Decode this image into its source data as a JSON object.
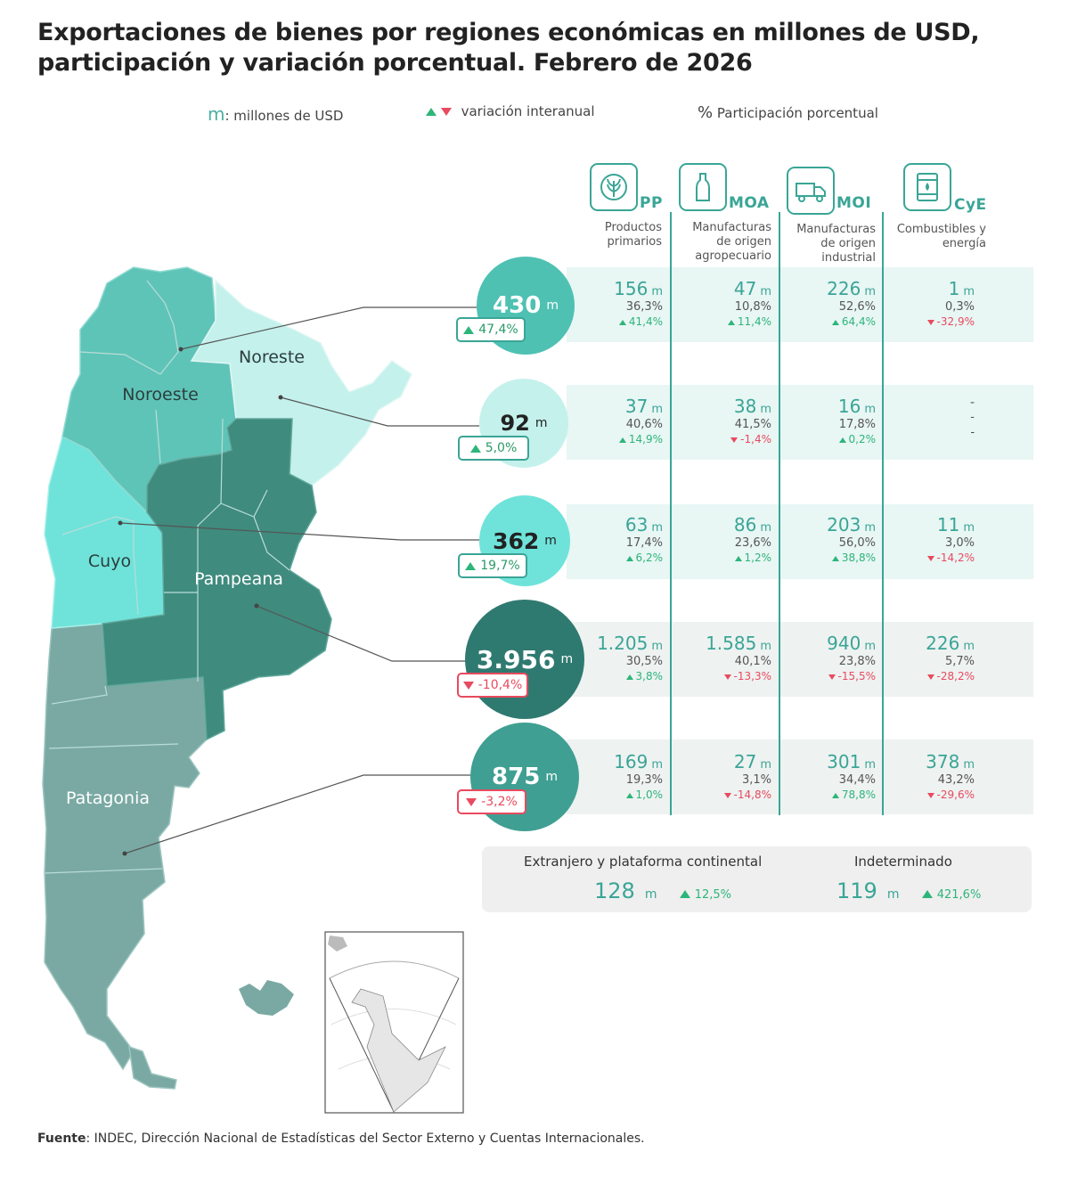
{
  "title": "Exportaciones de bienes por regiones económicas en millones de USD, participación y variación porcentual. Febrero de 2026",
  "legend": {
    "unit_symbol": "m",
    "unit_label": ": millones de USD",
    "variation_label": "variación interanual",
    "share_symbol": "%",
    "share_label": "Participación porcentual"
  },
  "colors": {
    "noroeste": "#5fc4b8",
    "noreste": "#c4f1ec",
    "cuyo": "#6fe3da",
    "pampeana": "#3f8b7e",
    "patagonia": "#7aa9a3",
    "accent": "#3aa596",
    "up": "#2db57a",
    "down": "#e84a5f"
  },
  "columns": [
    {
      "code": "PP",
      "desc_line1": "Productos",
      "desc_line2": "primarios",
      "desc_line3": "",
      "icon": "plant-icon"
    },
    {
      "code": "MOA",
      "desc_line1": "Manufacturas",
      "desc_line2": "de origen",
      "desc_line3": "agropecuario",
      "icon": "bottle-icon"
    },
    {
      "code": "MOI",
      "desc_line1": "Manufacturas",
      "desc_line2": "de origen",
      "desc_line3": "industrial",
      "icon": "truck-icon"
    },
    {
      "code": "CyE",
      "desc_line1": "Combustibles y",
      "desc_line2": "energía",
      "desc_line3": "",
      "icon": "fuel-barrel-icon"
    }
  ],
  "map_labels": {
    "noroeste": "Noroeste",
    "noreste": "Noreste",
    "cuyo": "Cuyo",
    "pampeana": "Pampeana",
    "patagonia": "Patagonia"
  },
  "regions": [
    {
      "name": "Noroeste",
      "total": "430",
      "unit": "m",
      "variation": "47,4%",
      "direction": "up",
      "cells": [
        {
          "value": "156",
          "share": "36,3%",
          "variation": "41,4%",
          "direction": "up"
        },
        {
          "value": "47",
          "share": "10,8%",
          "variation": "11,4%",
          "direction": "up"
        },
        {
          "value": "226",
          "share": "52,6%",
          "variation": "64,4%",
          "direction": "up"
        },
        {
          "value": "1",
          "share": "0,3%",
          "variation": "-32,9%",
          "direction": "down"
        }
      ]
    },
    {
      "name": "Noreste",
      "total": "92",
      "unit": "m",
      "variation": "5,0%",
      "direction": "up",
      "cells": [
        {
          "value": "37",
          "share": "40,6%",
          "variation": "14,9%",
          "direction": "up"
        },
        {
          "value": "38",
          "share": "41,5%",
          "variation": "-1,4%",
          "direction": "down"
        },
        {
          "value": "16",
          "share": "17,8%",
          "variation": "0,2%",
          "direction": "up"
        },
        {
          "value": "-",
          "share": "-",
          "variation": "-",
          "direction": "none"
        }
      ]
    },
    {
      "name": "Cuyo",
      "total": "362",
      "unit": "m",
      "variation": "19,7%",
      "direction": "up",
      "cells": [
        {
          "value": "63",
          "share": "17,4%",
          "variation": "6,2%",
          "direction": "up"
        },
        {
          "value": "86",
          "share": "23,6%",
          "variation": "1,2%",
          "direction": "up"
        },
        {
          "value": "203",
          "share": "56,0%",
          "variation": "38,8%",
          "direction": "up"
        },
        {
          "value": "11",
          "share": "3,0%",
          "variation": "-14,2%",
          "direction": "down"
        }
      ]
    },
    {
      "name": "Pampeana",
      "total": "3.956",
      "unit": "m",
      "variation": "-10,4%",
      "direction": "down",
      "cells": [
        {
          "value": "1.205",
          "share": "30,5%",
          "variation": "3,8%",
          "direction": "up"
        },
        {
          "value": "1.585",
          "share": "40,1%",
          "variation": "-13,3%",
          "direction": "down"
        },
        {
          "value": "940",
          "share": "23,8%",
          "variation": "-15,5%",
          "direction": "down"
        },
        {
          "value": "226",
          "share": "5,7%",
          "variation": "-28,2%",
          "direction": "down"
        }
      ]
    },
    {
      "name": "Patagonia",
      "total": "875",
      "unit": "m",
      "variation": "-3,2%",
      "direction": "down",
      "cells": [
        {
          "value": "169",
          "share": "19,3%",
          "variation": "1,0%",
          "direction": "up"
        },
        {
          "value": "27",
          "share": "3,1%",
          "variation": "-14,8%",
          "direction": "down"
        },
        {
          "value": "301",
          "share": "34,4%",
          "variation": "78,8%",
          "direction": "up"
        },
        {
          "value": "378",
          "share": "43,2%",
          "variation": "-29,6%",
          "direction": "down"
        }
      ]
    }
  ],
  "extras": [
    {
      "label": "Extranjero y plataforma continental",
      "value": "128",
      "unit": "m",
      "variation": "12,5%",
      "direction": "up"
    },
    {
      "label": "Indeterminado",
      "value": "119",
      "unit": "m",
      "variation": "421,6%",
      "direction": "up"
    }
  ],
  "footer": {
    "label": "Fuente",
    "text": ": INDEC, Dirección Nacional de Estadísticas del Sector Externo y Cuentas Internacionales."
  }
}
